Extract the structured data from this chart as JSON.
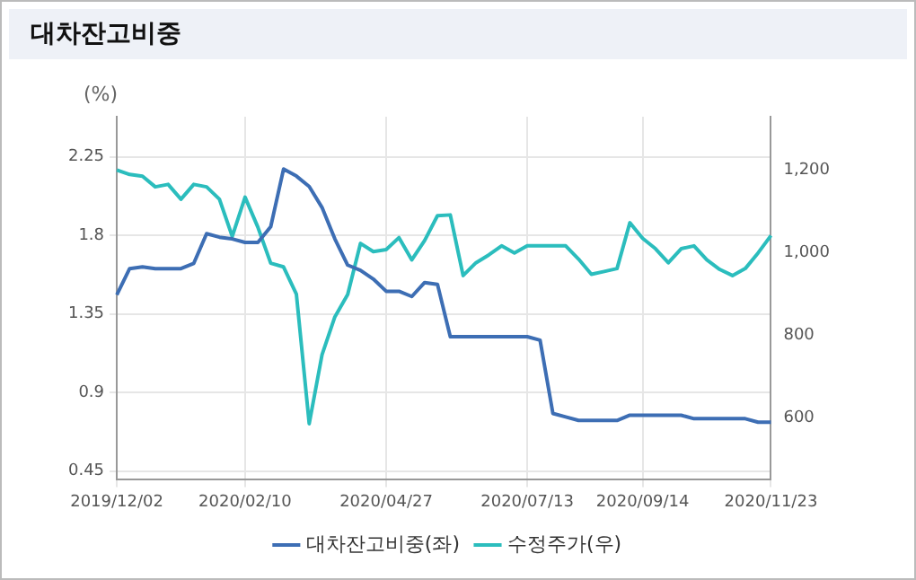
{
  "chart_data": {
    "type": "line",
    "title": "대차잔고비중",
    "ylabel": "(%)",
    "categories": [
      "2019/12/02",
      null,
      null,
      null,
      null,
      null,
      null,
      null,
      null,
      null,
      "2020/02/10",
      null,
      null,
      null,
      null,
      null,
      null,
      null,
      null,
      null,
      null,
      "2020/04/27",
      null,
      null,
      null,
      null,
      null,
      null,
      null,
      null,
      null,
      null,
      "2020/07/13",
      null,
      null,
      null,
      null,
      null,
      null,
      null,
      null,
      "2020/09/14",
      null,
      null,
      null,
      null,
      null,
      null,
      null,
      null,
      null,
      "2020/11/23"
    ],
    "series": [
      {
        "name": "대차잔고비중(좌)",
        "color": "#3d6eb4",
        "values": [
          1.46,
          1.61,
          1.62,
          1.61,
          1.61,
          1.61,
          1.64,
          1.81,
          1.79,
          1.78,
          1.76,
          1.76,
          1.85,
          2.18,
          2.14,
          2.08,
          1.96,
          1.78,
          1.63,
          1.6,
          1.55,
          1.48,
          1.48,
          1.45,
          1.53,
          1.52,
          1.22,
          1.22,
          1.22,
          1.22,
          1.22,
          1.22,
          1.22,
          1.2,
          0.78,
          0.76,
          0.74,
          0.74,
          0.74,
          0.74,
          0.77,
          0.77,
          0.77,
          0.77,
          0.77,
          0.75,
          0.75,
          0.75,
          0.75,
          0.75,
          0.73,
          0.73
        ]
      },
      {
        "name": "수정주가(우)",
        "color": "#2bbdbd",
        "axis": "y2",
        "values": [
          1201,
          1190,
          1186,
          1160,
          1166,
          1130,
          1166,
          1160,
          1130,
          1040,
          1135,
          1062,
          975,
          966,
          900,
          586,
          753,
          845,
          899,
          1023,
          1003,
          1008,
          1037,
          983,
          1030,
          1090,
          1092,
          945,
          976,
          995,
          1017,
          1000,
          1017,
          1017,
          1017,
          1017,
          985,
          948,
          955,
          962,
          1073,
          1035,
          1010,
          976,
          1010,
          1017,
          983,
          960,
          945,
          962,
          1000,
          1042
        ]
      }
    ],
    "ylim": [
      0.4,
      2.48
    ],
    "yticks": [
      0.45,
      0.9,
      1.35,
      1.8,
      2.25
    ],
    "y2lim": [
      450,
      1330
    ],
    "y2ticks": [
      600,
      800,
      {
        "value": 1000,
        "label": "1,000"
      },
      {
        "value": 1200,
        "label": "1,200"
      }
    ],
    "grid": true,
    "legend": "bottom",
    "marker": "none",
    "line_style": "solid"
  }
}
